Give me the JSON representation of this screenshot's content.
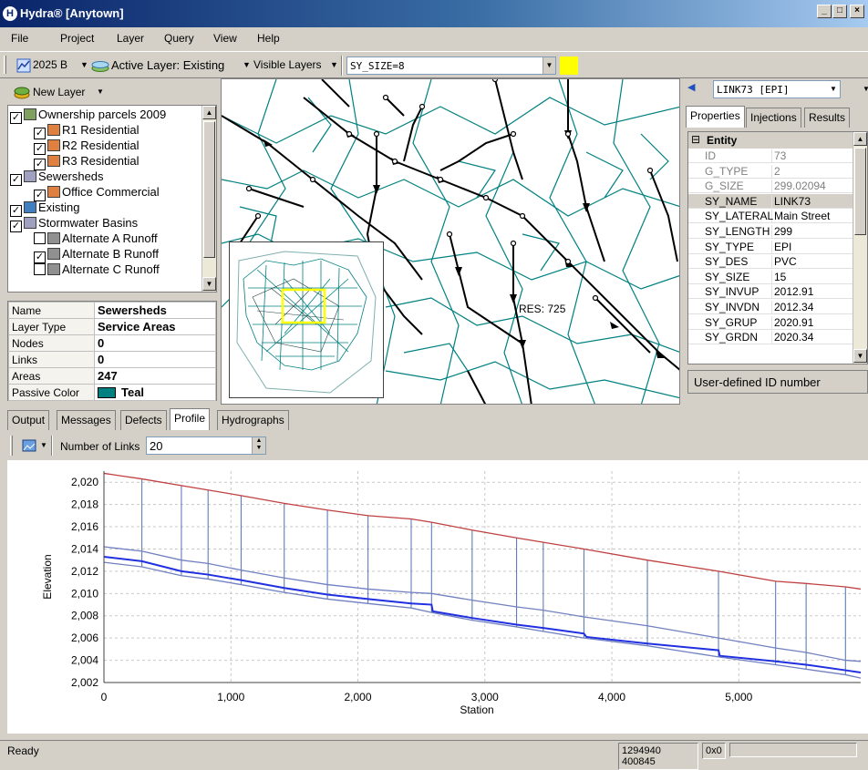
{
  "window": {
    "title": "Hydra® [Anytown]",
    "minimize": "_",
    "maximize": "□",
    "close": "×"
  },
  "menu": [
    "File",
    "Project",
    "Layer",
    "Query",
    "View",
    "Help"
  ],
  "toolbar": {
    "scenario": "2025 B",
    "active_layer": "Active Layer: Existing",
    "visible_layers": "Visible Layers",
    "query_value": "SY_SIZE=8",
    "query_color": "#ffff00"
  },
  "layers": {
    "new_layer_label": "New Layer",
    "items": [
      {
        "name": "Ownership parcels 2009",
        "checked": true,
        "indent": 0,
        "icon": "parcels-icon"
      },
      {
        "name": "R1 Residential",
        "checked": true,
        "indent": 1,
        "icon": "residential-icon"
      },
      {
        "name": "R2 Residential",
        "checked": true,
        "indent": 1,
        "icon": "residential-icon"
      },
      {
        "name": "R3 Residential",
        "checked": true,
        "indent": 1,
        "icon": "residential-icon"
      },
      {
        "name": "Sewersheds",
        "checked": true,
        "indent": 0,
        "icon": "sewershed-icon"
      },
      {
        "name": "Office Commercial",
        "checked": true,
        "indent": 1,
        "icon": "commercial-icon"
      },
      {
        "name": "Existing",
        "checked": true,
        "indent": 0,
        "icon": "network-icon"
      },
      {
        "name": "Stormwater Basins",
        "checked": true,
        "indent": 0,
        "icon": "basin-icon"
      },
      {
        "name": "Alternate A Runoff",
        "checked": false,
        "indent": 1,
        "icon": "runoff-icon"
      },
      {
        "name": "Alternate B Runoff",
        "checked": true,
        "indent": 1,
        "icon": "runoff-icon"
      },
      {
        "name": "Alternate C Runoff",
        "checked": false,
        "indent": 1,
        "icon": "runoff-icon"
      }
    ]
  },
  "layer_props": [
    {
      "key": "Name",
      "value": "Sewersheds"
    },
    {
      "key": "Layer Type",
      "value": "Service Areas"
    },
    {
      "key": "Nodes",
      "value": "0"
    },
    {
      "key": "Links",
      "value": "0"
    },
    {
      "key": "Areas",
      "value": "247"
    },
    {
      "key": "Passive Color",
      "value": "Teal",
      "color": "#008080"
    }
  ],
  "map": {
    "label": "RES: 725",
    "network_color": "#008080",
    "overview_box_color": "#ffff00"
  },
  "entity": {
    "selector": "LINK73 [EPI]",
    "tabs": [
      "Properties",
      "Injections",
      "Results"
    ],
    "category": "Entity",
    "props": [
      {
        "key": "ID",
        "value": "73",
        "readonly": true
      },
      {
        "key": "G_TYPE",
        "value": "2",
        "readonly": true
      },
      {
        "key": "G_SIZE",
        "value": "299.02094",
        "readonly": true
      },
      {
        "key": "SY_NAME",
        "value": "LINK73",
        "readonly": false,
        "selected": true
      },
      {
        "key": "SY_LATERAL",
        "value": "Main Street",
        "readonly": false
      },
      {
        "key": "SY_LENGTH",
        "value": "299",
        "readonly": false
      },
      {
        "key": "SY_TYPE",
        "value": "EPI",
        "readonly": false
      },
      {
        "key": "SY_DES",
        "value": "PVC",
        "readonly": false
      },
      {
        "key": "SY_SIZE",
        "value": "15",
        "readonly": false
      },
      {
        "key": "SY_INVUP",
        "value": "2012.91",
        "readonly": false
      },
      {
        "key": "SY_INVDN",
        "value": "2012.34",
        "readonly": false
      },
      {
        "key": "SY_GRUP",
        "value": "2020.91",
        "readonly": false
      },
      {
        "key": "SY_GRDN",
        "value": "2020.34",
        "readonly": false
      }
    ],
    "description": "User-defined ID number"
  },
  "bottom_tabs": [
    "Output",
    "Messages",
    "Defects",
    "Profile",
    "Hydrographs"
  ],
  "active_bottom_tab": "Profile",
  "profile": {
    "links_label": "Number of Links",
    "links_value": "20"
  },
  "chart_data": {
    "type": "line",
    "xlabel": "Station",
    "ylabel": "Elevation",
    "xlim": [
      0,
      5960
    ],
    "ylim": [
      2002,
      2021
    ],
    "xticks": [
      0,
      1000,
      2000,
      3000,
      4000,
      5000
    ],
    "xtick_labels": [
      "0",
      "1,000",
      "2,000",
      "3,000",
      "4,000",
      "5,000"
    ],
    "yticks": [
      2002,
      2004,
      2006,
      2008,
      2010,
      2012,
      2014,
      2016,
      2018,
      2020
    ],
    "ytick_labels": [
      "2,002",
      "2,004",
      "2,006",
      "2,008",
      "2,010",
      "2,012",
      "2,014",
      "2,016",
      "2,018",
      "2,020"
    ],
    "grid": true,
    "manholes": [
      0,
      299,
      610,
      820,
      1080,
      1420,
      1760,
      2080,
      2420,
      2580,
      2900,
      3250,
      3460,
      3780,
      4280,
      4840,
      5290,
      5530,
      5840
    ],
    "series": [
      {
        "color": "#c04040",
        "x": [
          0,
          299,
          610,
          820,
          1080,
          1420,
          1760,
          2080,
          2420,
          2580,
          2900,
          3250,
          3460,
          3780,
          4280,
          4840,
          5290,
          5530,
          5840,
          5960
        ],
        "values": [
          2020.8,
          2020.3,
          2019.7,
          2019.3,
          2018.8,
          2018.1,
          2017.5,
          2017.0,
          2016.7,
          2016.4,
          2015.7,
          2015.0,
          2014.6,
          2014.0,
          2013.0,
          2012.0,
          2011.1,
          2010.9,
          2010.6,
          2010.4
        ]
      },
      {
        "color": "#7080c0",
        "x": [
          0,
          299,
          610,
          820,
          1080,
          1420,
          1760,
          2080,
          2420,
          2580,
          2900,
          3250,
          3460,
          3780,
          4280,
          4840,
          5290,
          5530,
          5840,
          5960
        ],
        "values": [
          2014.2,
          2013.8,
          2013.0,
          2012.7,
          2012.1,
          2011.4,
          2010.8,
          2010.4,
          2010.1,
          2010.0,
          2009.4,
          2008.8,
          2008.5,
          2007.9,
          2007.1,
          2006.0,
          2005.1,
          2004.7,
          2004.0,
          2003.9
        ]
      },
      {
        "color": "#2030e0",
        "x": [
          0,
          299,
          610,
          820,
          1080,
          1420,
          1760,
          2080,
          2420,
          2580,
          2590,
          2900,
          3250,
          3460,
          3780,
          3800,
          4280,
          4840,
          4850,
          5290,
          5530,
          5840,
          5960
        ],
        "values": [
          2013.3,
          2012.9,
          2012.0,
          2011.7,
          2011.2,
          2010.5,
          2009.9,
          2009.5,
          2009.1,
          2009.0,
          2008.4,
          2007.8,
          2007.2,
          2006.9,
          2006.4,
          2006.1,
          2005.5,
          2004.9,
          2004.4,
          2003.9,
          2003.6,
          2003.1,
          2002.9
        ]
      },
      {
        "color": "#7080c0",
        "x": [
          0,
          299,
          610,
          820,
          1080,
          1420,
          1760,
          2080,
          2420,
          2580,
          2900,
          3250,
          3460,
          3780,
          4280,
          4840,
          5290,
          5530,
          5840,
          5960
        ],
        "values": [
          2012.8,
          2012.4,
          2011.6,
          2011.3,
          2010.8,
          2010.1,
          2009.5,
          2009.1,
          2008.7,
          2008.3,
          2007.6,
          2007.0,
          2006.6,
          2006.0,
          2005.3,
          2004.3,
          2003.6,
          2003.2,
          2002.7,
          2002.4
        ]
      }
    ]
  },
  "status": {
    "text": "Ready",
    "coords": "1294940 400845",
    "zoom": "0x0"
  }
}
